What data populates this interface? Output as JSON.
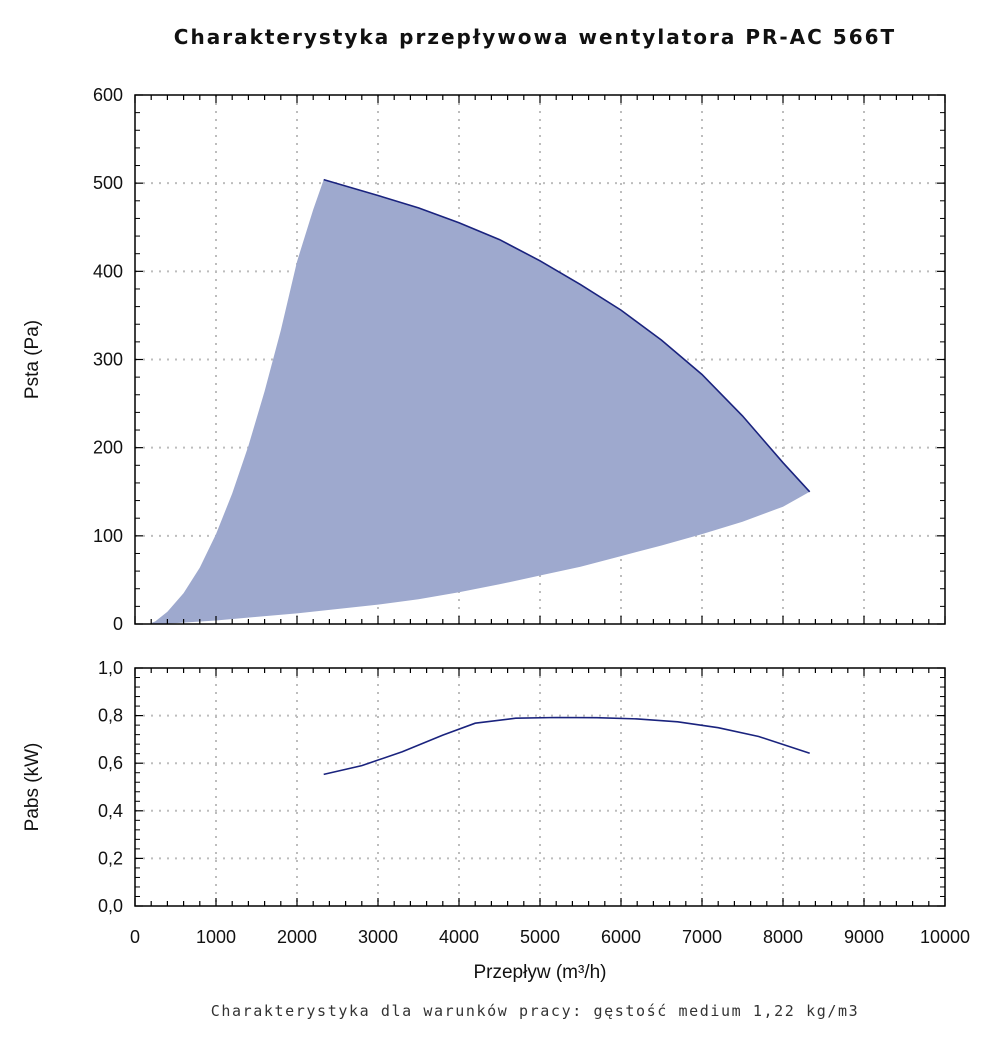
{
  "chart_data": {
    "title": "Charakterystyka przepływowa wentylatora PR-AC 566T",
    "footer": "Charakterystyka dla warunków pracy: gęstość medium 1,22 kg/m3",
    "xlabel": "Przepływ (m³/h)",
    "xlim": [
      0,
      10000
    ],
    "xticks": [
      0,
      1000,
      2000,
      3000,
      4000,
      5000,
      6000,
      7000,
      8000,
      9000,
      10000
    ],
    "xtick_labels": [
      "0",
      "1000",
      "2000",
      "3000",
      "4000",
      "5000",
      "6000",
      "7000",
      "8000",
      "9000",
      "10000"
    ],
    "grid": true,
    "panels": [
      {
        "type": "area",
        "ylabel": "Psta (Pa)",
        "ylim": [
          0,
          600
        ],
        "yticks": [
          0,
          100,
          200,
          300,
          400,
          500,
          600
        ],
        "ytick_labels": [
          "0",
          "100",
          "200",
          "300",
          "400",
          "500",
          "600"
        ],
        "fill_color": "#9ea9ce",
        "line_color": "#1a237e",
        "series": [
          {
            "role": "upper",
            "x": [
              2330,
              3000,
              3500,
              4000,
              4500,
              5000,
              5500,
              6000,
              6500,
              7000,
              7500,
              8000,
              8330
            ],
            "y": [
              504,
              486,
              472,
              455,
              436,
              412,
              385,
              356,
              322,
              283,
              236,
              183,
              150
            ]
          },
          {
            "role": "left",
            "x": [
              170,
              250,
              400,
              600,
              800,
              1000,
              1200,
              1400,
              1600,
              1800,
              2000,
              2200,
              2330
            ],
            "y": [
              0,
              3,
              14,
              35,
              64,
              102,
              148,
              202,
              264,
              333,
              411,
              470,
              504
            ]
          },
          {
            "role": "lower",
            "x": [
              220,
              500,
              1000,
              1500,
              2000,
              2500,
              3000,
              3500,
              4000,
              4500,
              5000,
              5500,
              6000,
              6500,
              7000,
              7500,
              8000,
              8330
            ],
            "y": [
              0,
              1,
              4,
              8,
              12,
              17,
              22,
              28,
              36,
              45,
              55,
              65,
              77,
              89,
              102,
              116,
              133,
              150
            ]
          }
        ]
      },
      {
        "type": "line",
        "ylabel": "Pabs (kW)",
        "ylim": [
          0,
          1
        ],
        "yticks": [
          0,
          0.2,
          0.4,
          0.6,
          0.8,
          1.0
        ],
        "ytick_labels": [
          "0,0",
          "0,2",
          "0,4",
          "0,6",
          "0,8",
          "1,0"
        ],
        "line_color": "#1a237e",
        "series": [
          {
            "x": [
              2330,
              2800,
              3300,
              3800,
              4200,
              4700,
              5200,
              5700,
              6200,
              6700,
              7200,
              7700,
              8330
            ],
            "y": [
              0.553,
              0.59,
              0.648,
              0.718,
              0.768,
              0.789,
              0.792,
              0.791,
              0.786,
              0.774,
              0.749,
              0.712,
              0.642
            ]
          }
        ]
      }
    ]
  }
}
